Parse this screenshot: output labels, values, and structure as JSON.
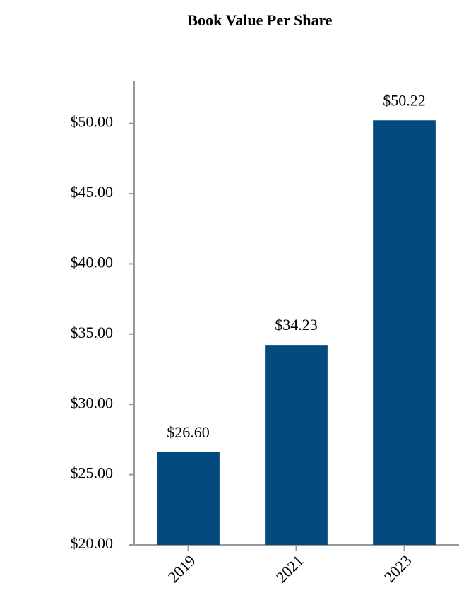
{
  "chart_data": {
    "type": "bar",
    "title": "Book Value Per Share",
    "categories": [
      "2019",
      "2021",
      "2023"
    ],
    "values": [
      26.6,
      34.23,
      50.22
    ],
    "value_labels": [
      "$26.60",
      "$34.23",
      "$50.22"
    ],
    "color": "#034a7d",
    "ylim": [
      20,
      53
    ],
    "yticks": [
      {
        "value": 20,
        "label": "$20.00"
      },
      {
        "value": 25,
        "label": "$25.00"
      },
      {
        "value": 30,
        "label": "$30.00"
      },
      {
        "value": 35,
        "label": "$35.00"
      },
      {
        "value": 40,
        "label": "$40.00"
      },
      {
        "value": 45,
        "label": "$45.00"
      },
      {
        "value": 50,
        "label": "$50.00"
      }
    ],
    "grid": false
  }
}
